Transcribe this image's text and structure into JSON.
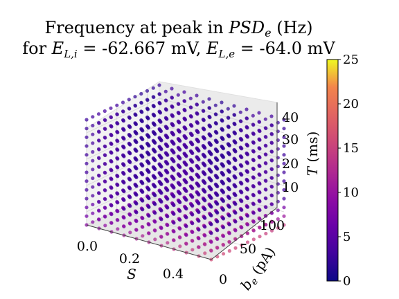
{
  "chart_data": {
    "type": "scatter",
    "subtype": "3d-scatter",
    "title": [
      "Frequency at peak in PSD",
      "for E",
      "L,i",
      " = -62.667 mV, E",
      "L,e",
      " = -64.0 mV"
    ],
    "title_parts": {
      "line1_prefix": "Frequency at peak in ",
      "line1_symbol": "PSD",
      "line1_sub": "e",
      "line1_suffix": " (Hz)",
      "line2_prefix": "for ",
      "line2_sym1": "E",
      "line2_sub1": "L,i",
      "line2_mid": " = -62.667 mV, ",
      "line2_sym2": "E",
      "line2_sub2": "L,e",
      "line2_suffix": " = -64.0 mV"
    },
    "x_axis": {
      "label": "S",
      "ticks": [
        "0.0",
        "0.2",
        "0.4"
      ],
      "range": [
        0.0,
        0.5
      ]
    },
    "y_axis": {
      "label_symbol": "b",
      "label_sub": "e",
      "label_unit": " (pA)",
      "ticks": [
        "0",
        "50",
        "100"
      ],
      "range": [
        0,
        120
      ]
    },
    "z_axis": {
      "label_symbol": "T",
      "label_unit": " (ms)",
      "ticks": [
        "10",
        "20",
        "30",
        "40"
      ],
      "range": [
        5,
        45
      ]
    },
    "grid": {
      "S_steps": 11,
      "be_steps": 13,
      "T_steps": 13
    },
    "colorbar": {
      "cmap": "plasma",
      "range": [
        0,
        25
      ],
      "ticks": [
        "0",
        "5",
        "10",
        "15",
        "20",
        "25"
      ]
    },
    "value_summary": {
      "typical_value": 4,
      "low_T_rows": [
        {
          "T": 5.0,
          "value_at_S_min": 9,
          "value_at_S_max": 16
        },
        {
          "T": 8.3,
          "value_at_S_min": 7,
          "value_at_S_max": 12
        },
        {
          "T": 11.7,
          "value_at_S_min": 6,
          "value_at_S_max": 9
        }
      ]
    },
    "grid_on": true,
    "legend": "none"
  }
}
